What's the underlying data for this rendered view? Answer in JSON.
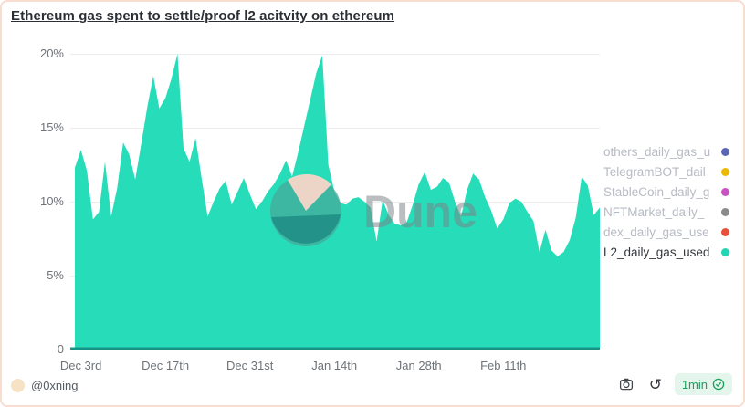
{
  "window": {
    "title": "Ethereum gas spent to settle/proof l2 acitvity on ethereum"
  },
  "chart_data": {
    "type": "area",
    "title": "Ethereum gas spent to settle/proof l2 acitvity on ethereum",
    "ylim": [
      0,
      20
    ],
    "grid": "horizontal",
    "legend_position": "right",
    "y_ticks": [
      {
        "label": "20%",
        "value": 20
      },
      {
        "label": "15%",
        "value": 15
      },
      {
        "label": "10%",
        "value": 10
      },
      {
        "label": "5%",
        "value": 5
      },
      {
        "label": "0",
        "value": 0
      }
    ],
    "x_ticks": [
      {
        "label": "Dec 3rd",
        "index": 1
      },
      {
        "label": "Dec 17th",
        "index": 15
      },
      {
        "label": "Dec 31st",
        "index": 29
      },
      {
        "label": "Jan 14th",
        "index": 43
      },
      {
        "label": "Jan 28th",
        "index": 57
      },
      {
        "label": "Feb 11th",
        "index": 71
      }
    ],
    "x": [
      "Dec 2",
      "Dec 3",
      "Dec 4",
      "Dec 5",
      "Dec 6",
      "Dec 7",
      "Dec 8",
      "Dec 9",
      "Dec 10",
      "Dec 11",
      "Dec 12",
      "Dec 13",
      "Dec 14",
      "Dec 15",
      "Dec 16",
      "Dec 17",
      "Dec 18",
      "Dec 19",
      "Dec 20",
      "Dec 21",
      "Dec 22",
      "Dec 23",
      "Dec 24",
      "Dec 25",
      "Dec 26",
      "Dec 27",
      "Dec 28",
      "Dec 29",
      "Dec 30",
      "Dec 31",
      "Jan 1",
      "Jan 2",
      "Jan 3",
      "Jan 4",
      "Jan 5",
      "Jan 6",
      "Jan 7",
      "Jan 8",
      "Jan 9",
      "Jan 10",
      "Jan 11",
      "Jan 12",
      "Jan 13",
      "Jan 14",
      "Jan 15",
      "Jan 16",
      "Jan 17",
      "Jan 18",
      "Jan 19",
      "Jan 20",
      "Jan 21",
      "Jan 22",
      "Jan 23",
      "Jan 24",
      "Jan 25",
      "Jan 26",
      "Jan 27",
      "Jan 28",
      "Jan 29",
      "Jan 30",
      "Jan 31",
      "Feb 1",
      "Feb 2",
      "Feb 3",
      "Feb 4",
      "Feb 5",
      "Feb 6",
      "Feb 7",
      "Feb 8",
      "Feb 9",
      "Feb 10",
      "Feb 11",
      "Feb 12",
      "Feb 13",
      "Feb 14",
      "Feb 15",
      "Feb 16",
      "Feb 17",
      "Feb 18",
      "Feb 19",
      "Feb 20",
      "Feb 21",
      "Feb 22",
      "Feb 23",
      "Feb 24",
      "Feb 25",
      "Feb 26",
      "Feb 27"
    ],
    "series": [
      {
        "name": "L2_daily_gas_used",
        "color": "#26dcb9",
        "baseline_color": "#17948a",
        "values": [
          12.3,
          13.5,
          12.1,
          8.8,
          9.3,
          12.7,
          9.0,
          10.9,
          14.0,
          13.2,
          11.5,
          13.9,
          16.4,
          18.5,
          16.3,
          17.0,
          18.3,
          20.0,
          13.6,
          12.7,
          14.3,
          11.6,
          9.0,
          10.0,
          10.9,
          11.4,
          9.8,
          10.7,
          11.6,
          10.5,
          9.5,
          10.0,
          10.7,
          11.2,
          11.9,
          12.8,
          11.7,
          13.3,
          15.1,
          16.9,
          18.7,
          19.9,
          12.5,
          10.7,
          9.9,
          9.8,
          10.2,
          10.3,
          10.0,
          9.6,
          7.3,
          10.1,
          9.1,
          8.5,
          8.4,
          8.6,
          9.8,
          11.2,
          12.0,
          10.8,
          11.0,
          11.6,
          11.3,
          10.0,
          9.0,
          10.8,
          11.9,
          11.5,
          10.3,
          9.4,
          8.2,
          8.8,
          9.9,
          10.2,
          10.0,
          9.3,
          8.7,
          6.6,
          8.1,
          6.7,
          6.3,
          6.6,
          7.4,
          8.9,
          11.7,
          11.1,
          9.1,
          9.6
        ]
      }
    ]
  },
  "legend": {
    "items": [
      {
        "label": "others_daily_gas_u",
        "color": "#5b67b5",
        "active": false
      },
      {
        "label": "TelegramBOT_dail",
        "color": "#edb800",
        "active": false
      },
      {
        "label": "StableCoin_daily_g",
        "color": "#c853c1",
        "active": false
      },
      {
        "label": "NFTMarket_daily_",
        "color": "#8b8b8b",
        "active": false
      },
      {
        "label": "dex_daily_gas_use",
        "color": "#e8503a",
        "active": false
      },
      {
        "label": "L2_daily_gas_used",
        "color": "#23d6b3",
        "active": true
      }
    ]
  },
  "watermark": {
    "text": "Dune"
  },
  "footer": {
    "author": "@0xning",
    "refresh_interval": "1min"
  }
}
